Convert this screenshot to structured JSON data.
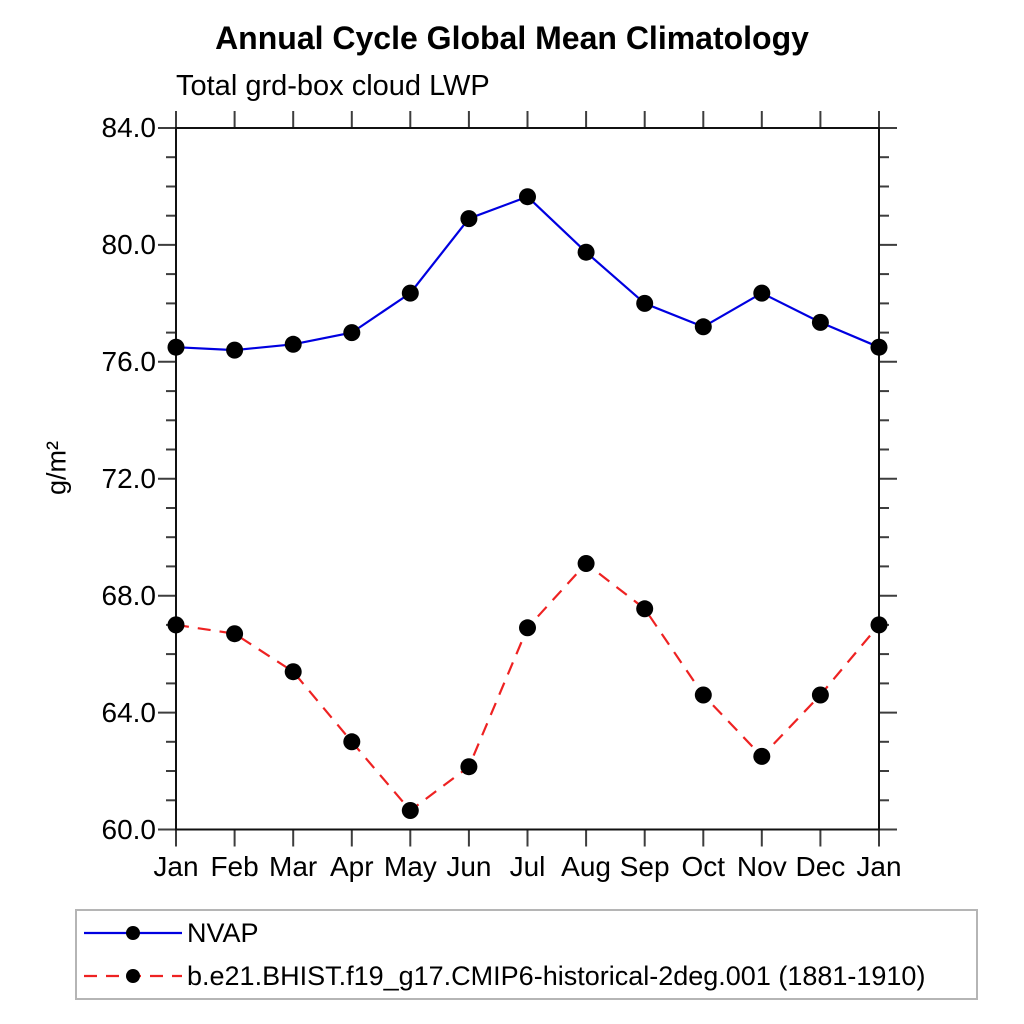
{
  "chart_data": {
    "type": "line",
    "title": "Annual Cycle Global Mean Climatology",
    "subtitle": "Total grd-box cloud LWP",
    "ylabel": "g/m²",
    "xlabel": "",
    "categories": [
      "Jan",
      "Feb",
      "Mar",
      "Apr",
      "May",
      "Jun",
      "Jul",
      "Aug",
      "Sep",
      "Oct",
      "Nov",
      "Dec",
      "Jan"
    ],
    "ylim": [
      60.0,
      84.0
    ],
    "yticks": [
      {
        "value": 84.0,
        "label": "84.0"
      },
      {
        "value": 80.0,
        "label": "80.0"
      },
      {
        "value": 76.0,
        "label": "76.0"
      },
      {
        "value": 72.0,
        "label": "72.0"
      },
      {
        "value": 68.0,
        "label": "68.0"
      },
      {
        "value": 64.0,
        "label": "64.0"
      },
      {
        "value": 60.0,
        "label": "60.0"
      }
    ],
    "ytick_minor_step": 1.0,
    "grid": false,
    "legend_position": "bottom",
    "marker_color": "#000000",
    "series": [
      {
        "name": "NVAP",
        "color": "#0000e0",
        "style": "solid",
        "marker": "filled-circle",
        "values": [
          76.5,
          76.4,
          76.6,
          77.0,
          78.35,
          80.9,
          81.65,
          79.75,
          78.0,
          77.2,
          78.35,
          77.35,
          76.5
        ]
      },
      {
        "name": "b.e21.BHIST.f19_g17.CMIP6-historical-2deg.001 (1881-1910)",
        "color": "#ee2222",
        "style": "dashed",
        "marker": "filled-circle",
        "values": [
          67.0,
          66.7,
          65.4,
          63.0,
          60.65,
          62.15,
          66.9,
          69.1,
          67.55,
          64.6,
          62.5,
          64.6,
          67.0
        ]
      }
    ]
  }
}
